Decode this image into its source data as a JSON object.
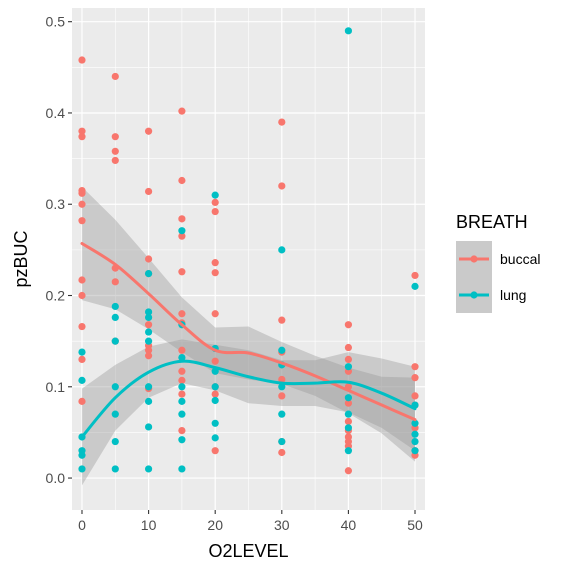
{
  "chart_data": {
    "type": "scatter",
    "xlabel": "O2LEVEL",
    "ylabel": "pzBUC",
    "xlim": [
      -1.5,
      51.5
    ],
    "ylim": [
      -0.035,
      0.515
    ],
    "xticks": [
      0,
      10,
      20,
      30,
      40,
      50
    ],
    "xtick_labels": [
      "0",
      "10",
      "20",
      "30",
      "40",
      "50"
    ],
    "xticks_minor": [
      5,
      15,
      25,
      35,
      45
    ],
    "yticks": [
      0.0,
      0.1,
      0.2,
      0.3,
      0.4,
      0.5
    ],
    "ytick_labels": [
      "0.0",
      "0.1",
      "0.2",
      "0.3",
      "0.4",
      "0.5"
    ],
    "yticks_minor": [
      0.05,
      0.15,
      0.25,
      0.35,
      0.45
    ],
    "grid": true,
    "legend": {
      "title": "BREATH",
      "position": "right",
      "entries": [
        "buccal",
        "lung"
      ]
    },
    "colors": {
      "panel": "#ebebeb",
      "grid": "#ffffff",
      "ribbon": "#999999",
      "buccal": "#f8766d",
      "lung": "#00bfc4"
    },
    "series": [
      {
        "name": "buccal",
        "points": [
          [
            0,
            0.458
          ],
          [
            0,
            0.38
          ],
          [
            0,
            0.374
          ],
          [
            0,
            0.315
          ],
          [
            0,
            0.312
          ],
          [
            0,
            0.3
          ],
          [
            0,
            0.282
          ],
          [
            0,
            0.217
          ],
          [
            0,
            0.2
          ],
          [
            0,
            0.166
          ],
          [
            0,
            0.13
          ],
          [
            0,
            0.084
          ],
          [
            5,
            0.44
          ],
          [
            5,
            0.374
          ],
          [
            5,
            0.358
          ],
          [
            5,
            0.348
          ],
          [
            5,
            0.23
          ],
          [
            5,
            0.215
          ],
          [
            5,
            0.15
          ],
          [
            10,
            0.38
          ],
          [
            10,
            0.314
          ],
          [
            10,
            0.24
          ],
          [
            10,
            0.224
          ],
          [
            10,
            0.168
          ],
          [
            10,
            0.145
          ],
          [
            10,
            0.14
          ],
          [
            10,
            0.134
          ],
          [
            10,
            0.098
          ],
          [
            15,
            0.402
          ],
          [
            15,
            0.326
          ],
          [
            15,
            0.284
          ],
          [
            15,
            0.265
          ],
          [
            15,
            0.226
          ],
          [
            15,
            0.18
          ],
          [
            15,
            0.17
          ],
          [
            15,
            0.14
          ],
          [
            15,
            0.117
          ],
          [
            15,
            0.107
          ],
          [
            15,
            0.092
          ],
          [
            15,
            0.052
          ],
          [
            20,
            0.302
          ],
          [
            20,
            0.292
          ],
          [
            20,
            0.236
          ],
          [
            20,
            0.225
          ],
          [
            20,
            0.18
          ],
          [
            20,
            0.128
          ],
          [
            20,
            0.1
          ],
          [
            20,
            0.092
          ],
          [
            20,
            0.03
          ],
          [
            30,
            0.39
          ],
          [
            30,
            0.32
          ],
          [
            30,
            0.173
          ],
          [
            30,
            0.138
          ],
          [
            30,
            0.108
          ],
          [
            30,
            0.09
          ],
          [
            30,
            0.04
          ],
          [
            30,
            0.028
          ],
          [
            40,
            0.168
          ],
          [
            40,
            0.143
          ],
          [
            40,
            0.13
          ],
          [
            40,
            0.117
          ],
          [
            40,
            0.1
          ],
          [
            40,
            0.082
          ],
          [
            40,
            0.062
          ],
          [
            40,
            0.052
          ],
          [
            40,
            0.045
          ],
          [
            40,
            0.04
          ],
          [
            40,
            0.035
          ],
          [
            40,
            0.008
          ],
          [
            50,
            0.222
          ],
          [
            50,
            0.122
          ],
          [
            50,
            0.11
          ],
          [
            50,
            0.09
          ],
          [
            50,
            0.08
          ],
          [
            50,
            0.055
          ],
          [
            50,
            0.03
          ],
          [
            50,
            0.025
          ]
        ],
        "smooth": {
          "x": [
            0,
            5,
            10,
            15,
            20,
            25,
            30,
            35,
            40,
            45,
            50
          ],
          "y": [
            0.257,
            0.234,
            0.202,
            0.168,
            0.14,
            0.137,
            0.126,
            0.112,
            0.096,
            0.08,
            0.064
          ],
          "lower": [
            0.195,
            0.185,
            0.163,
            0.138,
            0.115,
            0.108,
            0.103,
            0.09,
            0.071,
            0.049,
            0.018
          ],
          "upper": [
            0.319,
            0.283,
            0.241,
            0.198,
            0.165,
            0.166,
            0.149,
            0.134,
            0.121,
            0.111,
            0.11
          ]
        }
      },
      {
        "name": "lung",
        "points": [
          [
            0,
            0.138
          ],
          [
            0,
            0.107
          ],
          [
            0,
            0.045
          ],
          [
            0,
            0.03
          ],
          [
            0,
            0.025
          ],
          [
            0,
            0.01
          ],
          [
            5,
            0.188
          ],
          [
            5,
            0.176
          ],
          [
            5,
            0.15
          ],
          [
            5,
            0.1
          ],
          [
            5,
            0.07
          ],
          [
            5,
            0.04
          ],
          [
            5,
            0.01
          ],
          [
            10,
            0.224
          ],
          [
            10,
            0.182
          ],
          [
            10,
            0.176
          ],
          [
            10,
            0.16
          ],
          [
            10,
            0.15
          ],
          [
            10,
            0.1
          ],
          [
            10,
            0.084
          ],
          [
            10,
            0.056
          ],
          [
            10,
            0.01
          ],
          [
            15,
            0.271
          ],
          [
            15,
            0.168
          ],
          [
            15,
            0.132
          ],
          [
            15,
            0.1
          ],
          [
            15,
            0.084
          ],
          [
            15,
            0.07
          ],
          [
            15,
            0.042
          ],
          [
            15,
            0.01
          ],
          [
            20,
            0.31
          ],
          [
            20,
            0.142
          ],
          [
            20,
            0.117
          ],
          [
            20,
            0.1
          ],
          [
            20,
            0.085
          ],
          [
            20,
            0.06
          ],
          [
            20,
            0.044
          ],
          [
            30,
            0.25
          ],
          [
            30,
            0.14
          ],
          [
            30,
            0.124
          ],
          [
            30,
            0.1
          ],
          [
            30,
            0.07
          ],
          [
            30,
            0.04
          ],
          [
            40,
            0.49
          ],
          [
            40,
            0.122
          ],
          [
            40,
            0.088
          ],
          [
            40,
            0.07
          ],
          [
            40,
            0.055
          ],
          [
            40,
            0.03
          ],
          [
            50,
            0.21
          ],
          [
            50,
            0.08
          ],
          [
            50,
            0.06
          ],
          [
            50,
            0.048
          ],
          [
            50,
            0.04
          ],
          [
            50,
            0.03
          ]
        ],
        "smooth": {
          "x": [
            0,
            5,
            10,
            15,
            20,
            25,
            30,
            35,
            40,
            45,
            50
          ],
          "y": [
            0.045,
            0.088,
            0.116,
            0.128,
            0.121,
            0.111,
            0.104,
            0.104,
            0.105,
            0.093,
            0.076
          ],
          "lower": [
            -0.008,
            0.052,
            0.088,
            0.104,
            0.096,
            0.082,
            0.079,
            0.079,
            0.072,
            0.055,
            0.03
          ],
          "upper": [
            0.098,
            0.124,
            0.144,
            0.152,
            0.146,
            0.14,
            0.129,
            0.129,
            0.138,
            0.131,
            0.122
          ]
        }
      }
    ]
  }
}
